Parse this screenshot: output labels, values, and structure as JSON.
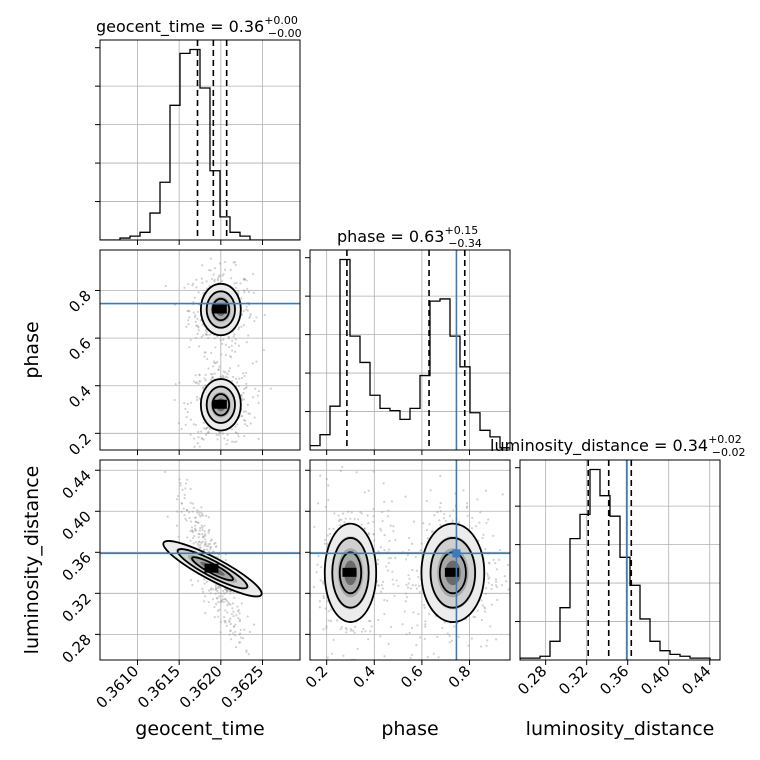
{
  "chart_data": {
    "type": "corner",
    "colors": {
      "truth": "#3a7bbf",
      "line": "#000000",
      "grid": "#b0b0b0",
      "scatter": "#9a9a9a"
    },
    "parameters": [
      {
        "name": "geocent_time",
        "label": "geocent_time",
        "title": {
          "text": "geocent_time = 0.36",
          "sup": "+0.00",
          "sub": "−0.00"
        },
        "range": [
          0.36055,
          0.36295
        ],
        "ticks": [
          0.361,
          0.3615,
          0.362,
          0.3625
        ],
        "tick_labels": [
          "0.3610",
          "0.3615",
          "0.3620",
          "0.3625"
        ],
        "quantiles": [
          0.36172,
          0.36191,
          0.36207
        ],
        "truth": null,
        "hist": {
          "edges": [
            0.36055,
            0.36067,
            0.36079,
            0.36091,
            0.36103,
            0.36115,
            0.36127,
            0.36139,
            0.36151,
            0.36163,
            0.36175,
            0.36187,
            0.36199,
            0.36211,
            0.36223,
            0.36235,
            0.36247,
            0.36259,
            0.36271,
            0.36283,
            0.36295
          ],
          "counts": [
            0,
            0,
            1,
            2,
            4,
            14,
            30,
            70,
            97,
            99,
            79,
            36,
            12,
            4,
            2,
            0,
            0,
            0,
            0,
            0
          ]
        }
      },
      {
        "name": "phase",
        "label": "phase",
        "title": {
          "text": "phase = 0.63",
          "sup": "+0.15",
          "sub": "−0.34"
        },
        "range": [
          0.13,
          0.97
        ],
        "ticks": [
          0.2,
          0.4,
          0.6,
          0.8
        ],
        "tick_labels": [
          "0.2",
          "0.4",
          "0.6",
          "0.8"
        ],
        "quantiles": [
          0.285,
          0.63,
          0.78
        ],
        "truth": 0.745,
        "hist": {
          "edges": [
            0.13,
            0.172,
            0.214,
            0.256,
            0.298,
            0.34,
            0.382,
            0.424,
            0.466,
            0.508,
            0.55,
            0.592,
            0.634,
            0.676,
            0.718,
            0.76,
            0.802,
            0.844,
            0.886,
            0.928,
            0.97
          ],
          "counts": [
            2,
            7,
            20,
            87,
            52,
            40,
            25,
            19,
            18,
            14,
            19,
            34,
            68,
            69,
            52,
            38,
            17,
            9,
            6,
            1
          ]
        }
      },
      {
        "name": "luminosity_distance",
        "label": "luminosity_distance",
        "title": {
          "text": "luminosity_distance = 0.34",
          "sup": "+0.02",
          "sub": "−0.02"
        },
        "range": [
          0.255,
          0.45
        ],
        "ticks": [
          0.28,
          0.32,
          0.36,
          0.4,
          0.44
        ],
        "tick_labels": [
          "0.28",
          "0.32",
          "0.36",
          "0.40",
          "0.44"
        ],
        "quantiles": [
          0.3215,
          0.3415,
          0.3635
        ],
        "truth": 0.359,
        "hist": {
          "edges": [
            0.255,
            0.26475,
            0.2745,
            0.28425,
            0.294,
            0.30375,
            0.3135,
            0.32325,
            0.333,
            0.34275,
            0.3525,
            0.36225,
            0.372,
            0.38175,
            0.3915,
            0.40125,
            0.411,
            0.42075,
            0.4305,
            0.44025,
            0.45
          ],
          "counts": [
            1,
            1,
            2,
            10,
            28,
            65,
            78,
            102,
            88,
            77,
            55,
            40,
            22,
            10,
            5,
            3,
            2,
            1,
            1,
            0
          ]
        }
      }
    ],
    "pairs": [
      {
        "x": "geocent_time",
        "y": "phase",
        "truth": [
          null,
          0.745
        ],
        "modes": [
          {
            "cx": 0.362,
            "cy": 0.72,
            "sx": 0.0001,
            "sy": 0.045
          },
          {
            "cx": 0.362,
            "cy": 0.32,
            "sx": 0.0001,
            "sy": 0.045
          }
        ]
      },
      {
        "x": "geocent_time",
        "y": "luminosity_distance",
        "truth": [
          null,
          0.359
        ],
        "modes": [
          {
            "cx": 0.3619,
            "cy": 0.344,
            "sx": 0.0001,
            "sy": 0.018,
            "rho": -0.85
          }
        ]
      },
      {
        "x": "phase",
        "y": "luminosity_distance",
        "truth": [
          0.745,
          0.359
        ],
        "modes": [
          {
            "cx": 0.3,
            "cy": 0.34,
            "sx": 0.045,
            "sy": 0.02
          },
          {
            "cx": 0.73,
            "cy": 0.34,
            "sx": 0.055,
            "sy": 0.02
          }
        ]
      }
    ]
  }
}
